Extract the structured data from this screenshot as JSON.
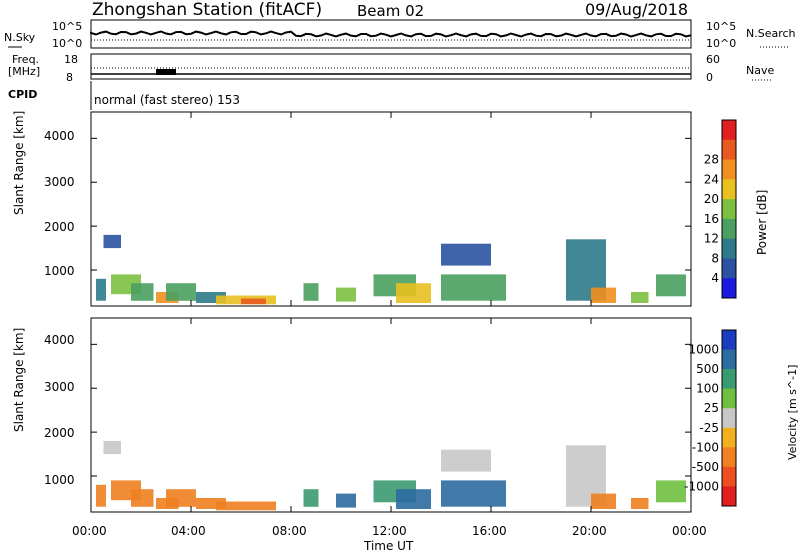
{
  "header": {
    "station": "Zhongshan Station (fitACF)",
    "beam": "Beam 02",
    "date": "09/Aug/2018"
  },
  "top_panels": {
    "nsky": {
      "label": "N.Sky",
      "ticks": [
        "10^5",
        "10^0"
      ],
      "right_ticks": [
        "10^5",
        "10^0"
      ],
      "right_label": "N.Search"
    },
    "freq": {
      "label_line1": "Freq.",
      "label_line2": "[MHz]",
      "ticks": [
        "18",
        "8"
      ],
      "right_ticks": [
        "60",
        "0"
      ],
      "right_label": "Nave"
    },
    "cpid": {
      "label": "CPID",
      "value": "normal (fast stereo) 153"
    }
  },
  "chart_data": [
    {
      "type": "heatmap",
      "name": "power",
      "ylabel": "Slant Range [km]",
      "yticks": [
        1000,
        2000,
        3000,
        4000
      ],
      "ylim": [
        180,
        4600
      ],
      "xlabel": "Time UT",
      "xticks": [
        "00:00",
        "04:00",
        "08:00",
        "12:00",
        "16:00",
        "20:00",
        "00:00"
      ],
      "xlim_hours": [
        0,
        24
      ],
      "colorbar": {
        "label": "Power [dB]",
        "ticks": [
          "4",
          "8",
          "12",
          "16",
          "20",
          "24",
          "28"
        ],
        "colors": [
          "#1a1ae0",
          "#2a52a0",
          "#2e7a8a",
          "#4aa060",
          "#7cc040",
          "#e8c020",
          "#f09020",
          "#e85a20",
          "#e02020"
        ]
      },
      "patches": [
        {
          "t": [
            0.2,
            0.6
          ],
          "r": [
            300,
            800
          ],
          "c": 2
        },
        {
          "t": [
            0.5,
            1.2
          ],
          "r": [
            1500,
            1800
          ],
          "c": 1
        },
        {
          "t": [
            0.8,
            2.0
          ],
          "r": [
            450,
            900
          ],
          "c": 4
        },
        {
          "t": [
            1.6,
            2.5
          ],
          "r": [
            300,
            700
          ],
          "c": 3
        },
        {
          "t": [
            2.6,
            3.5
          ],
          "r": [
            250,
            500
          ],
          "c": 6
        },
        {
          "t": [
            3.0,
            4.2
          ],
          "r": [
            300,
            700
          ],
          "c": 3
        },
        {
          "t": [
            4.2,
            5.4
          ],
          "r": [
            250,
            500
          ],
          "c": 2
        },
        {
          "t": [
            5.0,
            7.4
          ],
          "r": [
            220,
            420
          ],
          "c": 5
        },
        {
          "t": [
            6.0,
            7.0
          ],
          "r": [
            220,
            350
          ],
          "c": 7
        },
        {
          "t": [
            8.5,
            9.1
          ],
          "r": [
            300,
            700
          ],
          "c": 3
        },
        {
          "t": [
            9.8,
            10.6
          ],
          "r": [
            280,
            600
          ],
          "c": 4
        },
        {
          "t": [
            11.3,
            13.0
          ],
          "r": [
            400,
            900
          ],
          "c": 3
        },
        {
          "t": [
            12.2,
            13.6
          ],
          "r": [
            250,
            700
          ],
          "c": 5
        },
        {
          "t": [
            14.0,
            16.0
          ],
          "r": [
            1100,
            1600
          ],
          "c": 1
        },
        {
          "t": [
            14.0,
            16.6
          ],
          "r": [
            300,
            900
          ],
          "c": 3
        },
        {
          "t": [
            19.0,
            20.6
          ],
          "r": [
            300,
            1700
          ],
          "c": 2
        },
        {
          "t": [
            20.0,
            21.0
          ],
          "r": [
            250,
            600
          ],
          "c": 6
        },
        {
          "t": [
            21.6,
            22.3
          ],
          "r": [
            250,
            500
          ],
          "c": 4
        },
        {
          "t": [
            22.6,
            23.8
          ],
          "r": [
            400,
            900
          ],
          "c": 3
        }
      ]
    },
    {
      "type": "heatmap",
      "name": "velocity",
      "ylabel": "Slant Range [km]",
      "yticks": [
        1000,
        2000,
        3000,
        4000
      ],
      "ylim": [
        180,
        4600
      ],
      "xlabel": "Time UT",
      "xticks": [
        "00:00",
        "04:00",
        "08:00",
        "12:00",
        "16:00",
        "20:00",
        "00:00"
      ],
      "xlim_hours": [
        0,
        24
      ],
      "colorbar": {
        "label": "Velocity [m s^-1]",
        "ticks": [
          "1000",
          "500",
          "100",
          "25",
          "-25",
          "-100",
          "-500",
          "-1000"
        ],
        "colors": [
          "#1c3cc0",
          "#2c6ca0",
          "#3a9a70",
          "#70c040",
          "#c8c8c8",
          "#f0b020",
          "#f08020",
          "#ec5020",
          "#e02020"
        ]
      },
      "patches": [
        {
          "t": [
            0.2,
            0.6
          ],
          "r": [
            300,
            800
          ],
          "c": 6
        },
        {
          "t": [
            0.5,
            1.2
          ],
          "r": [
            1500,
            1800
          ],
          "c": 4
        },
        {
          "t": [
            0.8,
            2.0
          ],
          "r": [
            450,
            900
          ],
          "c": 6
        },
        {
          "t": [
            1.6,
            2.5
          ],
          "r": [
            300,
            700
          ],
          "c": 6
        },
        {
          "t": [
            2.6,
            3.5
          ],
          "r": [
            250,
            500
          ],
          "c": 6
        },
        {
          "t": [
            3.0,
            4.2
          ],
          "r": [
            300,
            700
          ],
          "c": 6
        },
        {
          "t": [
            4.2,
            5.4
          ],
          "r": [
            250,
            500
          ],
          "c": 6
        },
        {
          "t": [
            5.0,
            7.4
          ],
          "r": [
            220,
            420
          ],
          "c": 6
        },
        {
          "t": [
            8.5,
            9.1
          ],
          "r": [
            300,
            700
          ],
          "c": 2
        },
        {
          "t": [
            9.8,
            10.6
          ],
          "r": [
            280,
            600
          ],
          "c": 1
        },
        {
          "t": [
            11.3,
            13.0
          ],
          "r": [
            400,
            900
          ],
          "c": 2
        },
        {
          "t": [
            12.2,
            13.6
          ],
          "r": [
            250,
            700
          ],
          "c": 1
        },
        {
          "t": [
            14.0,
            16.0
          ],
          "r": [
            1100,
            1600
          ],
          "c": 4
        },
        {
          "t": [
            14.0,
            16.6
          ],
          "r": [
            300,
            900
          ],
          "c": 1
        },
        {
          "t": [
            19.0,
            20.6
          ],
          "r": [
            300,
            1700
          ],
          "c": 4
        },
        {
          "t": [
            20.0,
            21.0
          ],
          "r": [
            250,
            600
          ],
          "c": 6
        },
        {
          "t": [
            21.6,
            22.3
          ],
          "r": [
            250,
            500
          ],
          "c": 6
        },
        {
          "t": [
            22.6,
            23.8
          ],
          "r": [
            400,
            900
          ],
          "c": 3
        }
      ]
    }
  ]
}
